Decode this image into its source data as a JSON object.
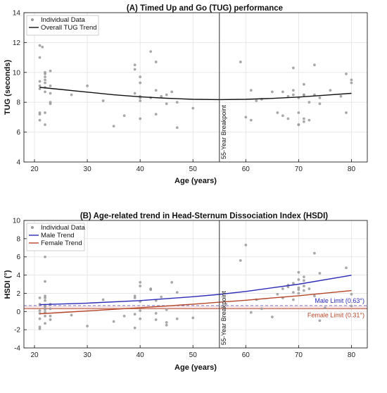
{
  "chart_data": [
    {
      "type": "scatter",
      "title": "(A) Timed Up and Go (TUG) performance",
      "xlabel": "Age (years)",
      "ylabel": "TUG (seconds)",
      "xlim": [
        18,
        83
      ],
      "ylim": [
        4,
        14
      ],
      "xticks": [
        "20",
        "30",
        "40",
        "50",
        "60",
        "70",
        "80"
      ],
      "yticks": [
        "4",
        "6",
        "8",
        "10",
        "12",
        "14"
      ],
      "grid": true,
      "legend_position": "top-left",
      "breakpoint": {
        "x": 55,
        "label": "55-Year Breakpoint"
      },
      "series": [
        {
          "name": "Individual Data",
          "kind": "points",
          "color": "#9a9a9a",
          "points": [
            [
              21,
              11.8
            ],
            [
              21,
              11
            ],
            [
              21.5,
              11.7
            ],
            [
              21,
              9.4
            ],
            [
              21,
              9.1
            ],
            [
              21,
              8.9
            ],
            [
              21,
              7.3
            ],
            [
              21,
              7.2
            ],
            [
              21,
              6.8
            ],
            [
              22,
              10
            ],
            [
              22,
              9.9
            ],
            [
              22,
              9.7
            ],
            [
              22,
              9.5
            ],
            [
              22,
              9.3
            ],
            [
              22,
              9
            ],
            [
              22,
              8.7
            ],
            [
              22,
              7.3
            ],
            [
              22,
              6.5
            ],
            [
              23,
              10.1
            ],
            [
              23,
              9.1
            ],
            [
              23,
              8.6
            ],
            [
              23,
              8
            ],
            [
              23,
              7.9
            ],
            [
              27,
              8.5
            ],
            [
              30,
              9.1
            ],
            [
              33,
              8.1
            ],
            [
              35,
              6.4
            ],
            [
              37,
              7.1
            ],
            [
              39,
              10.5
            ],
            [
              39,
              10.2
            ],
            [
              39,
              8.6
            ],
            [
              40,
              9.7
            ],
            [
              40,
              9.3
            ],
            [
              40,
              8.4
            ],
            [
              40,
              8.3
            ],
            [
              40,
              8.1
            ],
            [
              40,
              6.9
            ],
            [
              42,
              11.4
            ],
            [
              42,
              8.3
            ],
            [
              43,
              10.7
            ],
            [
              43,
              8.8
            ],
            [
              43,
              7.2
            ],
            [
              44,
              8.4
            ],
            [
              45,
              8.5
            ],
            [
              45,
              7.9
            ],
            [
              46,
              8.7
            ],
            [
              47,
              8
            ],
            [
              47,
              6.3
            ],
            [
              50,
              7.6
            ],
            [
              59,
              10.7
            ],
            [
              60,
              7
            ],
            [
              61,
              8.8
            ],
            [
              61,
              6.8
            ],
            [
              62,
              8.1
            ],
            [
              63,
              8.2
            ],
            [
              65,
              8.7
            ],
            [
              66,
              7.3
            ],
            [
              67,
              8.7
            ],
            [
              67,
              7.1
            ],
            [
              68,
              8.4
            ],
            [
              68,
              6.9
            ],
            [
              69,
              10.3
            ],
            [
              69,
              8.8
            ],
            [
              69,
              8.5
            ],
            [
              70,
              8.3
            ],
            [
              70,
              7.3
            ],
            [
              70,
              6.5
            ],
            [
              70,
              6.5
            ],
            [
              71,
              9.2
            ],
            [
              71,
              8.5
            ],
            [
              71,
              8.5
            ],
            [
              71,
              6.9
            ],
            [
              71,
              6.7
            ],
            [
              72,
              8
            ],
            [
              72,
              6.8
            ],
            [
              73,
              10.5
            ],
            [
              73,
              8.5
            ],
            [
              74,
              7.9
            ],
            [
              74,
              8.3
            ],
            [
              76,
              8.8
            ],
            [
              78,
              8.4
            ],
            [
              79,
              9.9
            ],
            [
              79,
              7.3
            ],
            [
              80,
              9.5
            ],
            [
              80,
              9.3
            ]
          ]
        },
        {
          "name": "Overall TUG Trend",
          "kind": "line",
          "color": "#111111",
          "x": [
            21,
            25,
            30,
            35,
            40,
            45,
            50,
            55,
            60,
            65,
            70,
            75,
            80
          ],
          "y": [
            9.0,
            8.86,
            8.68,
            8.5,
            8.37,
            8.27,
            8.2,
            8.18,
            8.2,
            8.26,
            8.35,
            8.47,
            8.6
          ]
        }
      ]
    },
    {
      "type": "scatter",
      "title": "(B) Age-related trend in Head-Sternum Dissociation Index (HSDI)",
      "xlabel": "Age (years)",
      "ylabel": "HSDI (°)",
      "xlim": [
        18,
        83
      ],
      "ylim": [
        -4,
        10
      ],
      "xticks": [
        "20",
        "30",
        "40",
        "50",
        "60",
        "70",
        "80"
      ],
      "yticks": [
        "-4",
        "-2",
        "0",
        "2",
        "4",
        "6",
        "8",
        "10"
      ],
      "grid": true,
      "legend_position": "top-left",
      "breakpoint": {
        "x": 55,
        "label": "55-Year Breakpoint"
      },
      "limits": [
        {
          "label": "Male Limit (0.63°)",
          "value": 0.63,
          "color": "#2b2bb8",
          "style": "dashed"
        },
        {
          "label": "Female Limit (0.31°)",
          "value": 0.31,
          "color": "#b6462a",
          "style": "solid"
        }
      ],
      "series": [
        {
          "name": "Individual Data",
          "kind": "points",
          "color": "#9a9a9a",
          "points": [
            [
              21,
              1.5
            ],
            [
              21,
              0.8
            ],
            [
              21,
              0.1
            ],
            [
              21,
              -0.2
            ],
            [
              21,
              -0.8
            ],
            [
              21,
              -1.7
            ],
            [
              21,
              -1.9
            ],
            [
              22,
              6
            ],
            [
              22,
              3.3
            ],
            [
              22,
              1.7
            ],
            [
              22,
              1.5
            ],
            [
              22,
              1.2
            ],
            [
              22,
              0.7
            ],
            [
              22,
              0.5
            ],
            [
              22,
              0.2
            ],
            [
              22,
              -0.1
            ],
            [
              22,
              -0.5
            ],
            [
              22,
              -1.3
            ],
            [
              23,
              0.8
            ],
            [
              23,
              0.3
            ],
            [
              23,
              -0.5
            ],
            [
              23,
              -0.9
            ],
            [
              27,
              -0.4
            ],
            [
              30,
              -1.6
            ],
            [
              33,
              1.3
            ],
            [
              35,
              -1.1
            ],
            [
              37,
              -0.5
            ],
            [
              39,
              1.7
            ],
            [
              39,
              1.5
            ],
            [
              39,
              -0.3
            ],
            [
              39,
              -1.8
            ],
            [
              40,
              3.2
            ],
            [
              40,
              2.8
            ],
            [
              40,
              1.1
            ],
            [
              40,
              0.1
            ],
            [
              40,
              -0.8
            ],
            [
              42,
              2.5
            ],
            [
              42,
              2.4
            ],
            [
              43,
              1.2
            ],
            [
              43,
              -0.2
            ],
            [
              43,
              -0.9
            ],
            [
              44,
              1.6
            ],
            [
              45,
              0.2
            ],
            [
              45,
              -1.2
            ],
            [
              45,
              -1.5
            ],
            [
              46,
              3.2
            ],
            [
              47,
              2.1
            ],
            [
              47,
              -0.8
            ],
            [
              50,
              -0.7
            ],
            [
              59,
              5.6
            ],
            [
              60,
              7.3
            ],
            [
              61,
              -0.1
            ],
            [
              62,
              1.3
            ],
            [
              63,
              0.3
            ],
            [
              65,
              -0.6
            ],
            [
              66,
              1.9
            ],
            [
              67,
              2.5
            ],
            [
              67,
              1.5
            ],
            [
              68,
              2.7
            ],
            [
              68,
              2.9
            ],
            [
              69,
              3.1
            ],
            [
              69,
              2.1
            ],
            [
              69,
              1.3
            ],
            [
              70,
              4.3
            ],
            [
              70,
              3.5
            ],
            [
              70,
              2.6
            ],
            [
              70,
              2.4
            ],
            [
              70,
              2
            ],
            [
              71,
              3.8
            ],
            [
              71,
              3.4
            ],
            [
              71,
              2.8
            ],
            [
              71,
              2.3
            ],
            [
              72,
              2.5
            ],
            [
              73,
              6.4
            ],
            [
              73,
              1.7
            ],
            [
              74,
              4.2
            ],
            [
              74,
              -1
            ],
            [
              75,
              0.4
            ],
            [
              79,
              4.8
            ],
            [
              80,
              1.9
            ],
            [
              80,
              0.6
            ]
          ]
        },
        {
          "name": "Male Trend",
          "kind": "line",
          "color": "#2b2bb8",
          "x": [
            21,
            30,
            40,
            50,
            55,
            60,
            70,
            80
          ],
          "y": [
            0.75,
            0.92,
            1.2,
            1.62,
            1.88,
            2.2,
            3.0,
            3.98
          ]
        },
        {
          "name": "Female Trend",
          "kind": "line",
          "color": "#b6462a",
          "x": [
            21,
            30,
            40,
            50,
            55,
            60,
            70,
            80
          ],
          "y": [
            -0.25,
            0.06,
            0.42,
            0.8,
            1.02,
            1.24,
            1.73,
            2.3
          ]
        }
      ]
    }
  ]
}
